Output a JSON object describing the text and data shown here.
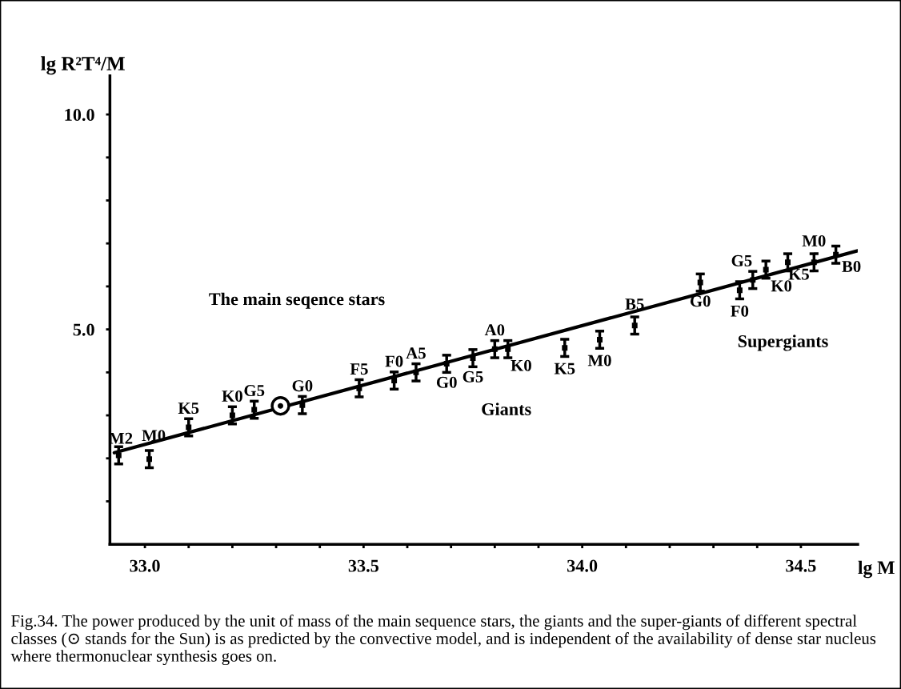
{
  "chart_data": {
    "type": "scatter",
    "xlabel": "lg M",
    "ylabel": "lg R²T⁴/M",
    "xlim": [
      32.92,
      34.63
    ],
    "ylim": [
      0,
      10.9
    ],
    "xticks": [
      {
        "value": 33.0,
        "label": "33.0"
      },
      {
        "value": 33.1,
        "label": null
      },
      {
        "value": 33.2,
        "label": null
      },
      {
        "value": 33.3,
        "label": null
      },
      {
        "value": 33.4,
        "label": null
      },
      {
        "value": 33.5,
        "label": "33.5"
      },
      {
        "value": 33.6,
        "label": null
      },
      {
        "value": 33.7,
        "label": null
      },
      {
        "value": 33.8,
        "label": null
      },
      {
        "value": 33.9,
        "label": null
      },
      {
        "value": 34.0,
        "label": "34.0"
      },
      {
        "value": 34.1,
        "label": null
      },
      {
        "value": 34.2,
        "label": null
      },
      {
        "value": 34.3,
        "label": null
      },
      {
        "value": 34.4,
        "label": null
      },
      {
        "value": 34.5,
        "label": "34.5"
      }
    ],
    "yticks": [
      {
        "value": 1,
        "label": null
      },
      {
        "value": 2,
        "label": null
      },
      {
        "value": 3,
        "label": null
      },
      {
        "value": 4,
        "label": null
      },
      {
        "value": 5,
        "label": "5.0"
      },
      {
        "value": 6,
        "label": null
      },
      {
        "value": 7,
        "label": null
      },
      {
        "value": 8,
        "label": null
      },
      {
        "value": 9,
        "label": null
      },
      {
        "value": 10,
        "label": "10.0"
      }
    ],
    "grid": false,
    "legend": false,
    "series": [
      {
        "color": "#000000",
        "marker": "square",
        "x": [
          32.94,
          33.01,
          33.1,
          33.2,
          33.25,
          33.36,
          33.49,
          33.57,
          33.62,
          33.8,
          34.12
        ],
        "values": [
          2.07,
          1.98,
          2.72,
          3.0,
          3.13,
          3.24,
          3.63,
          3.81,
          4.0,
          4.54,
          5.09
        ],
        "errors": [
          0.2,
          0.2,
          0.2,
          0.2,
          0.2,
          0.2,
          0.2,
          0.2,
          0.2,
          0.2,
          0.2
        ],
        "value_labels": [
          "M2",
          "M0",
          "K5",
          "K0",
          "G5",
          "G0",
          "F5",
          "F0",
          "A5",
          "A0",
          "B5"
        ]
      },
      {
        "color": "#000000",
        "marker": "circle",
        "x": [
          33.31
        ],
        "values": [
          3.22
        ]
      },
      {
        "color": "#000000",
        "marker": "square",
        "x": [
          33.69,
          33.75,
          33.83,
          33.96,
          34.04
        ],
        "values": [
          4.2,
          4.33,
          4.54,
          4.57,
          4.76
        ],
        "errors": [
          0.2,
          0.2,
          0.2,
          0.2,
          0.2
        ],
        "value_labels": [
          "G0",
          "G5",
          "K0",
          "K5",
          "M0"
        ]
      },
      {
        "color": "#000000",
        "marker": "square",
        "x": [
          34.27,
          34.36,
          34.39,
          34.42,
          34.47,
          34.53,
          34.58
        ],
        "values": [
          6.09,
          5.91,
          6.15,
          6.39,
          6.56,
          6.56,
          6.74
        ],
        "errors": [
          0.2,
          0.2,
          0.2,
          0.2,
          0.2,
          0.2,
          0.2
        ],
        "value_labels": [
          "G0",
          "F0",
          "G5",
          "K0",
          "K5",
          "M0",
          "B0"
        ]
      },
      {
        "type": "line",
        "color": "#000000",
        "line_style": "solid",
        "x": [
          32.93,
          34.63
        ],
        "values": [
          2.13,
          6.83
        ]
      }
    ],
    "annotations": [
      "The main seqence stars",
      "Giants",
      "Supergiants",
      "Fig.34. The power produced by the unit of mass of the main sequence stars, the giants and the super-giants of different spectral classes (⊙ stands for the Sun) is as predicted by the convective model, and is independent of the availability of dense star nucleus where thermonuclear synthesis goes on."
    ]
  }
}
